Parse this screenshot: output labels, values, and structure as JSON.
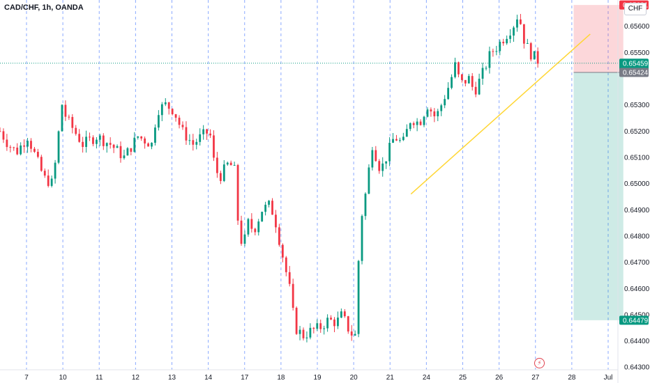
{
  "header": {
    "title": "CAD/CHF, 1h, OANDA",
    "currency_button": "CHF"
  },
  "chart_data": {
    "type": "candlestick",
    "title": "CAD/CHF, 1h, OANDA",
    "ylim": [
      0.6429,
      0.657
    ],
    "y_ticks": [
      "0.65600",
      "0.65500",
      "0.65300",
      "0.65200",
      "0.65100",
      "0.65000",
      "0.64900",
      "0.64800",
      "0.64700",
      "0.64600",
      "0.64500",
      "0.64400",
      "0.64300"
    ],
    "x_ticks": [
      "7",
      "10",
      "11",
      "12",
      "13",
      "14",
      "17",
      "18",
      "19",
      "20",
      "21",
      "24",
      "25",
      "26",
      "27",
      "28",
      "Jul"
    ],
    "price_labels": [
      {
        "value": 0.65681,
        "text": "0.65681",
        "color": "#f23645"
      },
      {
        "value": 0.65459,
        "text": "0.65459",
        "sub": "58:19",
        "color": "#089981"
      },
      {
        "value": 0.65424,
        "text": "0.65424",
        "color": "#787b86"
      },
      {
        "value": 0.64479,
        "text": "0.64479",
        "color": "#089981"
      }
    ],
    "last_price": 0.65459,
    "countdown": "58:19",
    "position": {
      "type": "short",
      "entry": 0.65424,
      "stop": 0.65681,
      "target": 0.64479,
      "start_day": 26.8,
      "end_day": 28.6
    },
    "trendline": {
      "from": {
        "day": 20.9,
        "price": 0.6496
      },
      "to": {
        "day": 27.4,
        "price": 0.6557
      },
      "color": "#ffd633"
    },
    "series": [
      {
        "day": 6.0,
        "price": 0.652
      },
      {
        "day": 6.3,
        "price": 0.6515
      },
      {
        "day": 6.6,
        "price": 0.6512
      },
      {
        "day": 7.0,
        "price": 0.6518
      },
      {
        "day": 7.3,
        "price": 0.651
      },
      {
        "day": 7.6,
        "price": 0.6502
      },
      {
        "day": 7.9,
        "price": 0.65
      },
      {
        "day": 8.1,
        "price": 0.6515
      },
      {
        "day": 8.2,
        "price": 0.6532
      },
      {
        "day": 8.4,
        "price": 0.6525
      },
      {
        "day": 8.7,
        "price": 0.652
      },
      {
        "day": 9.0,
        "price": 0.6515
      },
      {
        "day": 9.5,
        "price": 0.6518
      },
      {
        "day": 10.0,
        "price": 0.6515
      },
      {
        "day": 10.5,
        "price": 0.651
      },
      {
        "day": 11.0,
        "price": 0.6518
      },
      {
        "day": 11.5,
        "price": 0.6515
      },
      {
        "day": 11.7,
        "price": 0.6528
      },
      {
        "day": 12.0,
        "price": 0.653
      },
      {
        "day": 12.3,
        "price": 0.6528
      },
      {
        "day": 12.6,
        "price": 0.652
      },
      {
        "day": 13.0,
        "price": 0.6515
      },
      {
        "day": 13.3,
        "price": 0.6518
      },
      {
        "day": 13.6,
        "price": 0.652
      },
      {
        "day": 13.8,
        "price": 0.6505
      },
      {
        "day": 14.0,
        "price": 0.6503
      },
      {
        "day": 14.3,
        "price": 0.6508
      },
      {
        "day": 14.5,
        "price": 0.6505
      },
      {
        "day": 14.6,
        "price": 0.6488
      },
      {
        "day": 14.8,
        "price": 0.6475
      },
      {
        "day": 15.0,
        "price": 0.6485
      },
      {
        "day": 15.2,
        "price": 0.6482
      },
      {
        "day": 15.5,
        "price": 0.649
      },
      {
        "day": 15.8,
        "price": 0.6492
      },
      {
        "day": 16.0,
        "price": 0.6485
      },
      {
        "day": 16.2,
        "price": 0.6475
      },
      {
        "day": 16.5,
        "price": 0.646
      },
      {
        "day": 16.7,
        "price": 0.6445
      },
      {
        "day": 17.0,
        "price": 0.6442
      },
      {
        "day": 17.3,
        "price": 0.6444
      },
      {
        "day": 17.6,
        "price": 0.6445
      },
      {
        "day": 17.9,
        "price": 0.6448
      },
      {
        "day": 18.2,
        "price": 0.6447
      },
      {
        "day": 18.4,
        "price": 0.645
      },
      {
        "day": 18.7,
        "price": 0.6443
      },
      {
        "day": 18.9,
        "price": 0.6442
      },
      {
        "day": 19.05,
        "price": 0.6485
      },
      {
        "day": 19.2,
        "price": 0.6492
      },
      {
        "day": 19.5,
        "price": 0.6515
      },
      {
        "day": 19.8,
        "price": 0.6505
      },
      {
        "day": 20.0,
        "price": 0.651
      },
      {
        "day": 20.3,
        "price": 0.6518
      },
      {
        "day": 20.6,
        "price": 0.6515
      },
      {
        "day": 20.9,
        "price": 0.6525
      },
      {
        "day": 21.2,
        "price": 0.6523
      },
      {
        "day": 21.5,
        "price": 0.653
      },
      {
        "day": 21.8,
        "price": 0.6525
      },
      {
        "day": 22.0,
        "price": 0.653
      },
      {
        "day": 22.3,
        "price": 0.6538
      },
      {
        "day": 22.5,
        "price": 0.6545
      },
      {
        "day": 22.7,
        "price": 0.6538
      },
      {
        "day": 23.0,
        "price": 0.654
      },
      {
        "day": 23.2,
        "price": 0.6535
      },
      {
        "day": 23.5,
        "price": 0.6542
      },
      {
        "day": 23.8,
        "price": 0.655
      },
      {
        "day": 24.0,
        "price": 0.6552
      },
      {
        "day": 24.3,
        "price": 0.6556
      },
      {
        "day": 24.6,
        "price": 0.656
      },
      {
        "day": 24.8,
        "price": 0.6565
      },
      {
        "day": 25.0,
        "price": 0.6555
      },
      {
        "day": 25.2,
        "price": 0.655
      },
      {
        "day": 25.4,
        "price": 0.6548
      },
      {
        "day": 25.6,
        "price": 0.65459
      }
    ]
  }
}
